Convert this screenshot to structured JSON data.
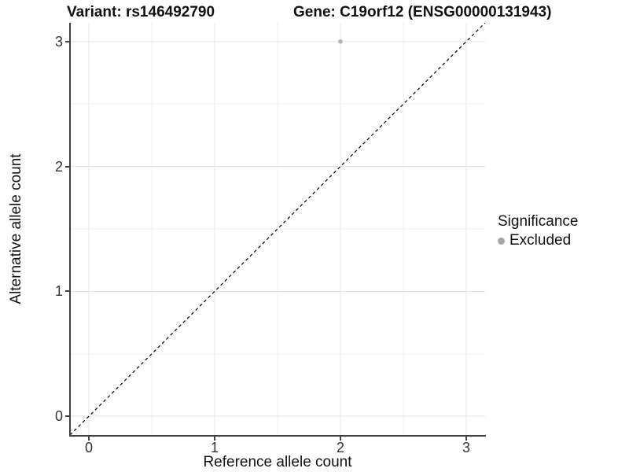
{
  "figure": {
    "title_left": "Variant: rs146492790",
    "title_right": "Gene: C19orf12 (ENSG00000131943)"
  },
  "axes": {
    "x_label": "Reference allele count",
    "y_label": "Alternative allele count"
  },
  "legend": {
    "title": "Significance",
    "items": [
      {
        "label": "Excluded",
        "color": "#a6a6a6"
      }
    ]
  },
  "colors": {
    "background": "#ffffff",
    "axis_line": "#404040",
    "grid_major": "#e4e4e4",
    "grid_minor": "#f1f1f1",
    "reference_line": "#000000",
    "point": "#b4b4b4"
  },
  "chart_data": {
    "type": "scatter",
    "titles": [
      "Variant: rs146492790",
      "Gene: C19orf12 (ENSG00000131943)"
    ],
    "xlabel": "Reference allele count",
    "ylabel": "Alternative allele count",
    "xlim": [
      -0.15,
      3.15
    ],
    "ylim": [
      -0.15,
      3.15
    ],
    "x_ticks": [
      0,
      1,
      2,
      3
    ],
    "y_ticks": [
      0,
      1,
      2,
      3
    ],
    "grid": "major gridlines at integers, minor gridlines at 0.5 intervals, white background",
    "legend_position": "right",
    "series": [
      {
        "name": "Excluded",
        "color": "#b4b4b4",
        "points": [
          {
            "x": 2,
            "y": 3
          }
        ]
      }
    ],
    "reference_line": {
      "style": "dashed",
      "color": "#000000",
      "equation": "y = x",
      "x": [
        -0.15,
        3.15
      ],
      "y": [
        -0.15,
        3.15
      ]
    }
  }
}
